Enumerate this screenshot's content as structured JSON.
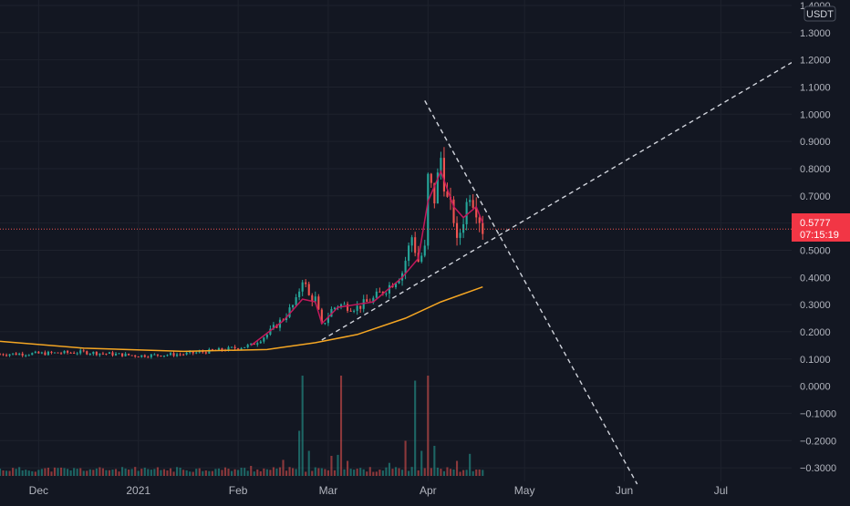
{
  "chart_data": {
    "type": "candlestick",
    "quote_currency": "USDT",
    "last_price_label": "0.5777",
    "countdown_label": "07:15:19",
    "y_ticks": [
      "1.4000",
      "1.3000",
      "1.2000",
      "1.1000",
      "1.0000",
      "0.9000",
      "0.8000",
      "0.7000",
      "0.6000",
      "0.5000",
      "0.4000",
      "0.3000",
      "0.2000",
      "0.1000",
      "0.0000",
      "−0.1000",
      "−0.2000",
      "−0.3000"
    ],
    "y_tick_values": [
      1.4,
      1.3,
      1.2,
      1.1,
      1.0,
      0.9,
      0.8,
      0.7,
      0.6,
      0.5,
      0.4,
      0.3,
      0.2,
      0.1,
      0.0,
      -0.1,
      -0.2,
      -0.3
    ],
    "ylim": [
      -0.35,
      1.42
    ],
    "x_tick_labels": [
      "Dec",
      "2021",
      "Feb",
      "Mar",
      "Apr",
      "May",
      "Jun",
      "Jul"
    ],
    "x_tick_dates": [
      "2020-12-01",
      "2021-01-01",
      "2021-02-01",
      "2021-03-01",
      "2021-04-01",
      "2021-05-01",
      "2021-06-01",
      "2021-07-01"
    ],
    "xlim": [
      "2020-11-19",
      "2021-07-23"
    ],
    "last_price": 0.5777,
    "price_series": [
      {
        "date": "2020-11-19",
        "close": 0.118
      },
      {
        "date": "2020-12-01",
        "close": 0.12
      },
      {
        "date": "2020-12-15",
        "close": 0.125
      },
      {
        "date": "2021-01-01",
        "close": 0.112
      },
      {
        "date": "2021-01-15",
        "close": 0.118
      },
      {
        "date": "2021-01-28",
        "close": 0.135
      },
      {
        "date": "2021-02-05",
        "close": 0.15
      },
      {
        "date": "2021-02-10",
        "close": 0.19
      },
      {
        "date": "2021-02-15",
        "close": 0.25
      },
      {
        "date": "2021-02-19",
        "close": 0.31
      },
      {
        "date": "2021-02-21",
        "close": 0.4
      },
      {
        "date": "2021-02-23",
        "close": 0.33
      },
      {
        "date": "2021-02-25",
        "close": 0.32
      },
      {
        "date": "2021-02-27",
        "close": 0.22
      },
      {
        "date": "2021-03-02",
        "close": 0.28
      },
      {
        "date": "2021-03-04",
        "close": 0.3
      },
      {
        "date": "2021-03-10",
        "close": 0.29
      },
      {
        "date": "2021-03-15",
        "close": 0.32
      },
      {
        "date": "2021-03-20",
        "close": 0.37
      },
      {
        "date": "2021-03-24",
        "close": 0.42
      },
      {
        "date": "2021-03-27",
        "close": 0.55
      },
      {
        "date": "2021-03-29",
        "close": 0.46
      },
      {
        "date": "2021-03-31",
        "close": 0.5
      },
      {
        "date": "2021-04-01",
        "close": 0.76
      },
      {
        "date": "2021-04-03",
        "close": 0.69
      },
      {
        "date": "2021-04-05",
        "close": 0.84
      },
      {
        "date": "2021-04-07",
        "close": 0.68
      },
      {
        "date": "2021-04-09",
        "close": 0.62
      },
      {
        "date": "2021-04-10",
        "close": 0.52
      },
      {
        "date": "2021-04-12",
        "close": 0.62
      },
      {
        "date": "2021-04-14",
        "close": 0.72
      },
      {
        "date": "2021-04-16",
        "close": 0.66
      },
      {
        "date": "2021-04-18",
        "close": 0.5777
      }
    ],
    "fast_ma": [
      {
        "date": "2021-02-05",
        "value": 0.15
      },
      {
        "date": "2021-02-15",
        "value": 0.24
      },
      {
        "date": "2021-02-21",
        "value": 0.32
      },
      {
        "date": "2021-02-25",
        "value": 0.31
      },
      {
        "date": "2021-02-27",
        "value": 0.23
      },
      {
        "date": "2021-03-04",
        "value": 0.29
      },
      {
        "date": "2021-03-15",
        "value": 0.31
      },
      {
        "date": "2021-03-24",
        "value": 0.4
      },
      {
        "date": "2021-03-29",
        "value": 0.47
      },
      {
        "date": "2021-04-01",
        "value": 0.68
      },
      {
        "date": "2021-04-05",
        "value": 0.79
      },
      {
        "date": "2021-04-09",
        "value": 0.66
      },
      {
        "date": "2021-04-12",
        "value": 0.62
      },
      {
        "date": "2021-04-16",
        "value": 0.66
      },
      {
        "date": "2021-04-18",
        "value": 0.6
      }
    ],
    "slow_ma": [
      {
        "date": "2020-11-19",
        "value": 0.165
      },
      {
        "date": "2020-12-15",
        "value": 0.14
      },
      {
        "date": "2021-01-15",
        "value": 0.128
      },
      {
        "date": "2021-02-10",
        "value": 0.135
      },
      {
        "date": "2021-02-25",
        "value": 0.16
      },
      {
        "date": "2021-03-10",
        "value": 0.19
      },
      {
        "date": "2021-03-25",
        "value": 0.25
      },
      {
        "date": "2021-04-05",
        "value": 0.31
      },
      {
        "date": "2021-04-18",
        "value": 0.365
      }
    ],
    "trendlines": [
      {
        "name": "rising-support",
        "from": {
          "date": "2021-02-27",
          "value": 0.17
        },
        "to": {
          "date": "2021-07-23",
          "value": 1.19
        },
        "style": "dashed"
      },
      {
        "name": "falling-resistance",
        "from": {
          "date": "2021-03-31",
          "value": 1.05
        },
        "to": {
          "date": "2021-06-05",
          "value": -0.36
        },
        "style": "dashed"
      }
    ],
    "volume_series": [
      {
        "date": "2020-12-01",
        "value": 0.06
      },
      {
        "date": "2021-01-01",
        "value": 0.05
      },
      {
        "date": "2021-02-05",
        "value": 0.1
      },
      {
        "date": "2021-02-15",
        "value": 0.16
      },
      {
        "date": "2021-02-20",
        "value": 0.45
      },
      {
        "date": "2021-02-21",
        "value": 1.0
      },
      {
        "date": "2021-02-23",
        "value": 0.25
      },
      {
        "date": "2021-03-02",
        "value": 0.2
      },
      {
        "date": "2021-03-04",
        "value": 0.21
      },
      {
        "date": "2021-03-05",
        "value": 1.0
      },
      {
        "date": "2021-03-07",
        "value": 0.15
      },
      {
        "date": "2021-03-20",
        "value": 0.13
      },
      {
        "date": "2021-03-25",
        "value": 0.35
      },
      {
        "date": "2021-03-28",
        "value": 0.95
      },
      {
        "date": "2021-03-30",
        "value": 0.25
      },
      {
        "date": "2021-04-01",
        "value": 1.0
      },
      {
        "date": "2021-04-03",
        "value": 0.3
      },
      {
        "date": "2021-04-10",
        "value": 0.15
      },
      {
        "date": "2021-04-14",
        "value": 0.22
      },
      {
        "date": "2021-04-18",
        "value": 0.06
      }
    ],
    "colors": {
      "background": "#131722",
      "up": "#26a69a",
      "down": "#ef5350",
      "fast_ma": "#c2185b",
      "slow_ma": "#f5a623",
      "trendline": "#d1d4dc",
      "price_line": "#ef5350",
      "price_label_bg": "#f23645",
      "grid": "#1e222d",
      "axis_text": "#b2b5be"
    }
  }
}
